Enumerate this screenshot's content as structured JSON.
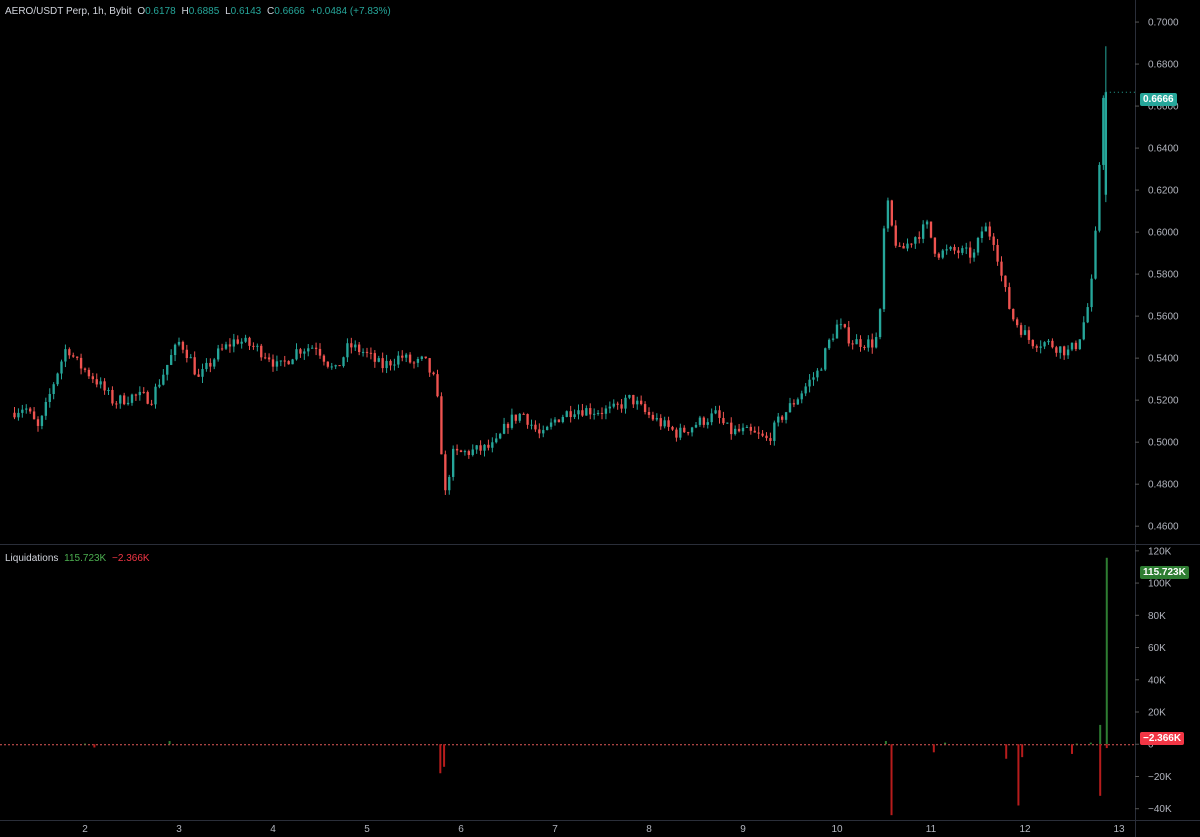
{
  "colors": {
    "background": "#000000",
    "up": "#26a69a",
    "down": "#ef5350",
    "liq_pos": "#2e7d32",
    "liq_neg": "#b71c1c",
    "grid": "#2a2e39"
  },
  "legend": {
    "title": "AERO/USDT Perp, 1h, Bybit",
    "o_label": "O",
    "o_value": "0.6178",
    "h_label": "H",
    "h_value": "0.6885",
    "l_label": "L",
    "l_value": "0.6143",
    "c_label": "C",
    "c_value": "0.6666",
    "change": "+0.0484 (+7.83%)"
  },
  "liq_legend": {
    "title": "Liquidations",
    "pos": "115.723K",
    "neg": "−2.366K"
  },
  "price_tag": "0.6666",
  "liq_tags": {
    "pos": "115.723K",
    "neg": "−2.366K"
  },
  "chart_data": [
    {
      "type": "candlestick",
      "title": "AERO/USDT Perp, 1h, Bybit",
      "ylim": [
        0.452,
        0.7105
      ],
      "y_ticks": [
        "0.7000",
        "0.6800",
        "0.6600",
        "0.6400",
        "0.6200",
        "0.6000",
        "0.5800",
        "0.5600",
        "0.5400",
        "0.5200",
        "0.5000",
        "0.4800",
        "0.4600"
      ],
      "x_ticks": [
        "2",
        "3",
        "4",
        "5",
        "6",
        "7",
        "8",
        "9",
        "10",
        "11",
        "12",
        "13"
      ],
      "x_range_days": [
        1.25,
        13.1
      ],
      "last": {
        "open": 0.6178,
        "high": 0.6885,
        "low": 0.6143,
        "close": 0.6666
      },
      "path": [
        [
          1.25,
          0.514
        ],
        [
          1.4,
          0.517
        ],
        [
          1.55,
          0.506
        ],
        [
          1.72,
          0.53
        ],
        [
          1.85,
          0.546
        ],
        [
          1.95,
          0.538
        ],
        [
          2.15,
          0.53
        ],
        [
          2.35,
          0.519
        ],
        [
          2.55,
          0.522
        ],
        [
          2.75,
          0.521
        ],
        [
          2.95,
          0.54
        ],
        [
          3.05,
          0.548
        ],
        [
          3.15,
          0.541
        ],
        [
          3.25,
          0.53
        ],
        [
          3.45,
          0.542
        ],
        [
          3.65,
          0.549
        ],
        [
          3.85,
          0.545
        ],
        [
          4.0,
          0.541
        ],
        [
          4.1,
          0.535
        ],
        [
          4.3,
          0.544
        ],
        [
          4.5,
          0.546
        ],
        [
          4.7,
          0.533
        ],
        [
          4.85,
          0.546
        ],
        [
          5.0,
          0.543
        ],
        [
          5.2,
          0.536
        ],
        [
          5.4,
          0.541
        ],
        [
          5.55,
          0.537
        ],
        [
          5.65,
          0.539
        ],
        [
          5.75,
          0.53
        ],
        [
          5.8,
          0.517
        ],
        [
          5.87,
          0.474
        ],
        [
          5.95,
          0.494
        ],
        [
          6.2,
          0.496
        ],
        [
          6.4,
          0.498
        ],
        [
          6.55,
          0.51
        ],
        [
          6.7,
          0.514
        ],
        [
          6.9,
          0.502
        ],
        [
          7.05,
          0.511
        ],
        [
          7.25,
          0.516
        ],
        [
          7.45,
          0.515
        ],
        [
          7.65,
          0.515
        ],
        [
          7.85,
          0.521
        ],
        [
          8.0,
          0.514
        ],
        [
          8.2,
          0.508
        ],
        [
          8.35,
          0.504
        ],
        [
          8.55,
          0.509
        ],
        [
          8.75,
          0.513
        ],
        [
          8.9,
          0.505
        ],
        [
          9.05,
          0.505
        ],
        [
          9.2,
          0.503
        ],
        [
          9.3,
          0.501
        ],
        [
          9.45,
          0.512
        ],
        [
          9.6,
          0.52
        ],
        [
          9.75,
          0.529
        ],
        [
          9.85,
          0.534
        ],
        [
          9.95,
          0.547
        ],
        [
          10.05,
          0.556
        ],
        [
          10.2,
          0.548
        ],
        [
          10.45,
          0.547
        ],
        [
          10.5,
          0.561
        ],
        [
          10.56,
          0.618
        ],
        [
          10.62,
          0.603
        ],
        [
          10.7,
          0.59
        ],
        [
          10.85,
          0.597
        ],
        [
          11.0,
          0.603
        ],
        [
          11.1,
          0.59
        ],
        [
          11.3,
          0.591
        ],
        [
          11.5,
          0.589
        ],
        [
          11.6,
          0.603
        ],
        [
          11.72,
          0.596
        ],
        [
          11.8,
          0.577
        ],
        [
          11.9,
          0.56
        ],
        [
          12.1,
          0.548
        ],
        [
          12.3,
          0.547
        ],
        [
          12.5,
          0.543
        ],
        [
          12.6,
          0.547
        ],
        [
          12.7,
          0.562
        ],
        [
          12.76,
          0.578
        ],
        [
          12.82,
          0.616
        ],
        [
          12.86,
          0.666
        ]
      ]
    },
    {
      "type": "bar",
      "title": "Liquidations",
      "ylim": [
        -0.047,
        0.123
      ],
      "y_ticks": [
        "120K",
        "100K",
        "80K",
        "60K",
        "40K",
        "20K",
        "0",
        "−20K",
        "−40K"
      ],
      "series": [
        {
          "name": "115.723K",
          "x_days": [
            2.0,
            2.9,
            6.3,
            10.52,
            11.15,
            12.55,
            12.7,
            12.8,
            12.87
          ],
          "values": [
            0.0004,
            0.002,
            0.0005,
            0.002,
            0.001,
            0.0004,
            0.001,
            0.012,
            0.1157
          ]
        },
        {
          "name": "−2.366K",
          "x_days": [
            2.1,
            5.78,
            5.82,
            10.58,
            11.03,
            11.8,
            11.93,
            11.97,
            12.5,
            12.8,
            12.87
          ],
          "values": [
            -0.002,
            -0.018,
            -0.014,
            -0.044,
            -0.005,
            -0.009,
            -0.038,
            -0.008,
            -0.006,
            -0.032,
            -0.002366
          ]
        }
      ]
    }
  ]
}
